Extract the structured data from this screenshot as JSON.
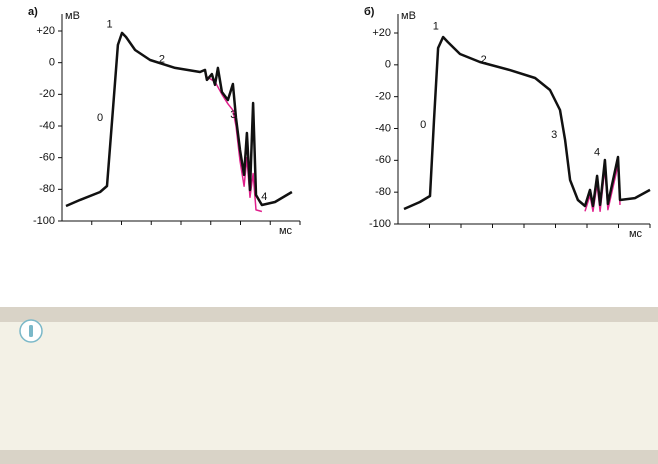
{
  "chart_data": [
    {
      "type": "line",
      "panel_label": "а)",
      "y_unit": "мВ",
      "x_unit": "мс",
      "ylim": [
        -100,
        20
      ],
      "xlim": [
        0,
        100
      ],
      "yticks": [
        -100,
        -80,
        -60,
        -40,
        -20,
        0,
        {
          "value": 20,
          "label": "+20"
        }
      ],
      "annotations": [
        "0",
        "1",
        "2",
        "3",
        "4"
      ],
      "series": [
        {
          "color": "#111111",
          "x": [
            1.7,
            7.6,
            16,
            18.9,
            21.4,
            23.5,
            25.2,
            26.9,
            30.7,
            37,
            47.5,
            58,
            60.1,
            60.9,
            63,
            64.3,
            65.5,
            67.2,
            69.7,
            71.8,
            73.1,
            74.8,
            76.5,
            77.7,
            79,
            80.3,
            81.5,
            84,
            89.5,
            96.6
          ],
          "values": [
            -90.5,
            -86.7,
            -81.7,
            -77.9,
            -29.9,
            11.2,
            18.8,
            16.2,
            8,
            1.7,
            -3.3,
            -5.9,
            -4.6,
            -10.9,
            -7.2,
            -14,
            -3.3,
            -18.5,
            -23.6,
            -13.5,
            -34.9,
            -55.1,
            -70.9,
            -44.4,
            -80.4,
            -25.5,
            -83.6,
            -89.9,
            -88,
            -81.7
          ]
        },
        {
          "color": "#e0208c",
          "x": [
            60.9,
            64.3,
            67.2,
            69.7,
            71.8,
            73.1,
            74.8,
            76.5,
            77.7,
            79,
            80.3,
            81.5,
            84
          ],
          "values": [
            -9,
            -12,
            -20,
            -26,
            -30,
            -40,
            -62,
            -78,
            -60,
            -85,
            -70,
            -93,
            -94
          ]
        }
      ]
    },
    {
      "type": "line",
      "panel_label": "б)",
      "y_unit": "мВ",
      "x_unit": "мс",
      "ylim": [
        -100,
        20
      ],
      "xlim": [
        0,
        100
      ],
      "yticks": [
        -100,
        -80,
        -60,
        -40,
        -20,
        0,
        {
          "value": 20,
          "label": "+20"
        }
      ],
      "annotations": [
        "0",
        "1",
        "2",
        "3",
        "4"
      ],
      "series": [
        {
          "color": "#111111",
          "x": [
            2.4,
            8.7,
            12.7,
            14.3,
            15.9,
            17.9,
            19.8,
            24.6,
            32.5,
            44.4,
            54.4,
            60.3,
            64.3,
            66.3,
            68.3,
            71.4,
            74.2,
            76.2,
            77.4,
            79,
            80.2,
            82.1,
            83.3,
            87.3,
            88.1,
            94,
            100
          ],
          "values": [
            -90.6,
            -86.2,
            -82.4,
            -34.7,
            10.6,
            17.5,
            14.3,
            6.8,
            1.8,
            -3.3,
            -8.3,
            -15.8,
            -28.4,
            -47.2,
            -72.4,
            -84.9,
            -88.7,
            -78.6,
            -88.7,
            -69.8,
            -88,
            -59.8,
            -87.4,
            -57.9,
            -84.9,
            -83.7,
            -78.6
          ]
        },
        {
          "color": "#e0208c",
          "x": [
            74.2,
            76.2,
            77.4,
            79,
            80.2,
            82.1,
            83.3,
            87.3,
            88.1
          ],
          "values": [
            -92,
            -82,
            -92,
            -75,
            -92,
            -65,
            -91,
            -63,
            -88
          ]
        }
      ]
    }
  ]
}
